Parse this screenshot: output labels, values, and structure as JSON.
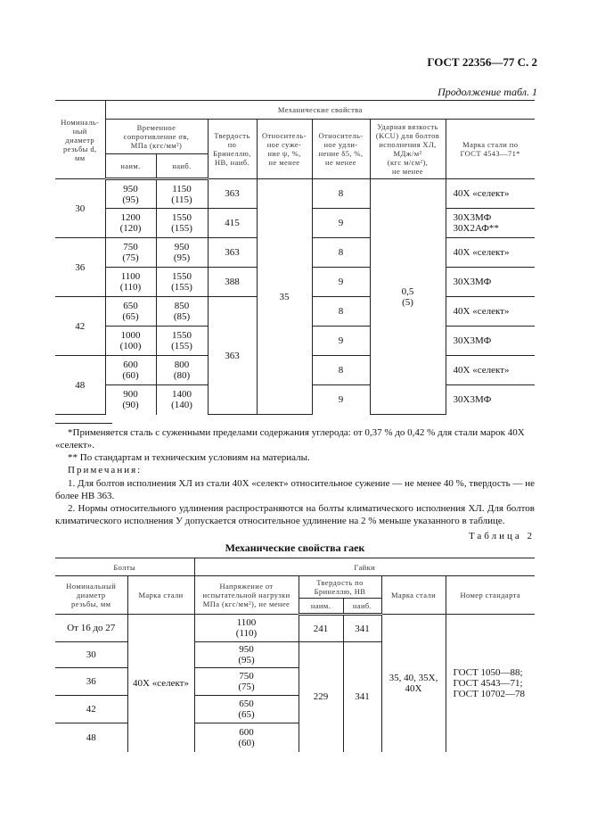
{
  "header": {
    "page_ref": "ГОСТ 22356—77 С. 2",
    "continuation": "Продолжение табл. 1"
  },
  "table1": {
    "h_diam": "Номиналь-\nный\nдиаметр\nрезьбы d,\nмм",
    "h_mech": "Механические свойства",
    "h_tensile": "Временное\nсопротивление σв,\nМПа (кгс/мм²)",
    "h_min": "наим.",
    "h_max": "наиб.",
    "h_hb": "Твердость\nпо\nБринеллю,\nHB, наиб.",
    "h_psi": "Относитель-\nное суже-\nние ψ, %,\nне менее",
    "h_delta": "Относитель-\nное удли-\nнение δ5, %,\nне менее",
    "h_kcu": "Ударная вязкость\n(KCU) для болтов\nисполнения ХЛ,\nМДж/м²\n(кгс м/см²),\nне менее",
    "h_grade": "Марка стали по\nГОСТ 4543—71*",
    "diam": [
      "30",
      "36",
      "42",
      "48"
    ],
    "rows": [
      {
        "min": "950\n(95)",
        "max": "1150\n(115)",
        "hb": "363",
        "delta": "8",
        "grade": "40Х «селект»"
      },
      {
        "min": "1200\n(120)",
        "max": "1550\n(155)",
        "hb": "415",
        "delta": "9",
        "grade": "30Х3МФ\n30Х2АФ**"
      },
      {
        "min": "750\n(75)",
        "max": "950\n(95)",
        "hb": "363",
        "delta": "8",
        "grade": "40Х «селект»"
      },
      {
        "min": "1100\n(110)",
        "max": "1550\n(155)",
        "hb": "388",
        "delta": "9",
        "grade": "30Х3МФ"
      },
      {
        "min": "650\n(65)",
        "max": "850\n(85)",
        "hb": "363",
        "delta": "8",
        "grade": "40Х «селект»"
      },
      {
        "min": "1000\n(100)",
        "max": "1550\n(155)",
        "delta": "9",
        "grade": "30Х3МФ"
      },
      {
        "min": "600\n(60)",
        "max": "800\n(80)",
        "delta": "8",
        "grade": "40Х «селект»"
      },
      {
        "min": "900\n(90)",
        "max": "1400\n(140)",
        "delta": "9",
        "grade": "30Х3МФ"
      }
    ],
    "psi": "35",
    "kcu": "0,5\n(5)"
  },
  "notes": {
    "fn1": "*Применяется сталь с суженными пределами содержания углерода: от 0,37 % до 0,42 % для стали марок 40Х «селект».",
    "fn2": "** По стандартам и техническим условиям на материалы.",
    "title": "Примечания:",
    "n1": "1. Для болтов исполнения ХЛ из стали 40Х «селект» относительное сужение — не менее 40 %, твердость — не более НВ 363.",
    "n2": "2. Нормы относительного удлинения распространяются на болты климатического исполнения ХЛ. Для болтов климатического исполнения У допускается относительное удлинение на 2 % меньше указанного в таблице."
  },
  "table2": {
    "label": "Таблица 2",
    "title": "Механические свойства гаек",
    "h_bolts": "Болты",
    "h_nuts": "Гайки",
    "h_diam": "Номинальный\nдиаметр\nрезьбы, мм",
    "h_bgrade": "Марка стали",
    "h_stress": "Напряжение от\nиспытательной нагрузки\nМПа (кгс/мм²), не менее",
    "h_hb": "Твердость по\nБринеллю, НВ",
    "h_min": "наим.",
    "h_max": "наиб.",
    "h_ngrade": "Марка стали",
    "h_std": "Номер стандарта",
    "rows": [
      {
        "diam": "От 16 до 27",
        "stress": "1100\n(110)"
      },
      {
        "diam": "30",
        "stress": "950\n(95)"
      },
      {
        "diam": "36",
        "stress": "750\n(75)"
      },
      {
        "diam": "42",
        "stress": "650\n(65)"
      },
      {
        "diam": "48",
        "stress": "600\n(60)"
      }
    ],
    "bgrade": "40Х «селект»",
    "hb1_min": "241",
    "hb1_max": "341",
    "hb_min": "229",
    "hb_max": "341",
    "ngrade": "35, 40, 35Х,\n40Х",
    "std": "ГОСТ 1050—88;\nГОСТ 4543—71;\nГОСТ 10702—78"
  }
}
